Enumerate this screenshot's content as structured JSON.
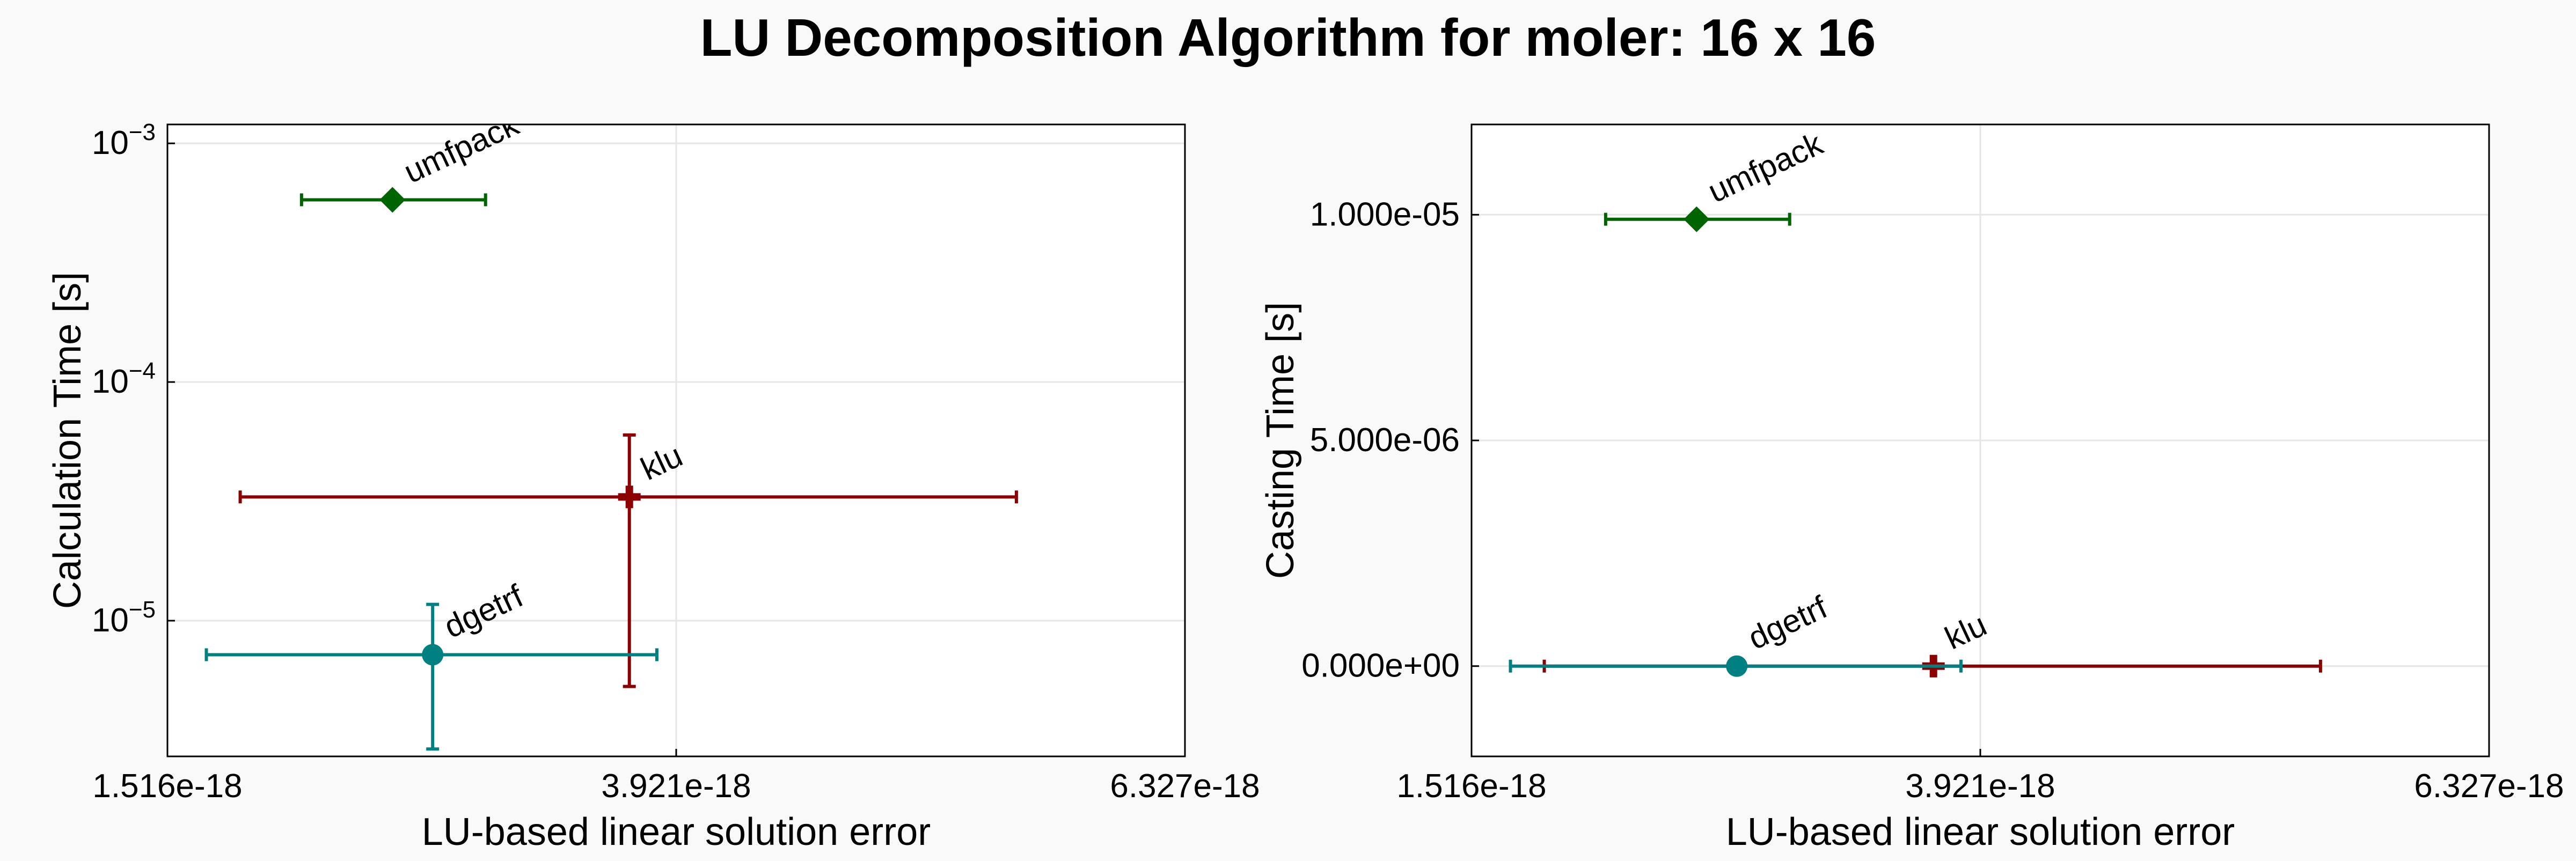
{
  "title": "LU Decomposition Algorithm for moler: 16 x 16",
  "colors": {
    "background": "#f9f9f9",
    "plot_bg": "#ffffff",
    "grid": "#e6e6e6",
    "frame": "#000000"
  },
  "chart_data": [
    {
      "type": "scatter",
      "xlabel": "LU-based linear solution error",
      "ylabel": "Calculation Time [s]",
      "yscale": "log",
      "xlim": [
        1.516e-18,
        6.327e-18
      ],
      "ylim": [
        2.7e-06,
        0.0012
      ],
      "grid": true,
      "x_ticks": [
        "1.516e-18",
        "3.921e-18",
        "6.327e-18"
      ],
      "y_ticks": [
        {
          "base": "10",
          "exp": "−3",
          "value": 0.001
        },
        {
          "base": "10",
          "exp": "−4",
          "value": 0.0001
        },
        {
          "base": "10",
          "exp": "−5",
          "value": 1e-05
        }
      ],
      "points": [
        {
          "label": "umfpack",
          "x": 2.58e-18,
          "y": 0.00058,
          "xerr": [
            2.15e-18,
            3.02e-18
          ],
          "color": "#006400",
          "marker": "diamond"
        },
        {
          "label": "klu",
          "x": 3.7e-18,
          "y": 3.3e-05,
          "xerr": [
            1.86e-18,
            5.53e-18
          ],
          "yerr": [
            5.3e-06,
            6e-05
          ],
          "color": "#8b0000",
          "marker": "cross"
        },
        {
          "label": "dgetrf",
          "x": 2.77e-18,
          "y": 7.2e-06,
          "xerr": [
            1.7e-18,
            3.83e-18
          ],
          "yerr": [
            2.9e-06,
            1.17e-05
          ],
          "color": "#008080",
          "marker": "circle"
        }
      ]
    },
    {
      "type": "scatter",
      "xlabel": "LU-based linear solution error",
      "ylabel": "Casting Time [s]",
      "yscale": "linear",
      "xlim": [
        1.516e-18,
        6.327e-18
      ],
      "ylim": [
        -2e-06,
        1.2e-05
      ],
      "grid": true,
      "x_ticks": [
        "1.516e-18",
        "3.921e-18",
        "6.327e-18"
      ],
      "y_ticks": [
        {
          "text": "1.000e-05",
          "value": 1e-05
        },
        {
          "text": "5.000e-06",
          "value": 5e-06
        },
        {
          "text": "0.000e+00",
          "value": 0
        }
      ],
      "points": [
        {
          "label": "umfpack",
          "x": 2.58e-18,
          "y": 9.9e-06,
          "xerr": [
            2.15e-18,
            3.02e-18
          ],
          "color": "#006400",
          "marker": "diamond"
        },
        {
          "label": "klu",
          "x": 3.7e-18,
          "y": 0,
          "xerr": [
            1.86e-18,
            5.53e-18
          ],
          "color": "#8b0000",
          "marker": "cross"
        },
        {
          "label": "dgetrf",
          "x": 2.77e-18,
          "y": 0,
          "xerr": [
            1.7e-18,
            3.83e-18
          ],
          "color": "#008080",
          "marker": "circle"
        }
      ]
    }
  ]
}
